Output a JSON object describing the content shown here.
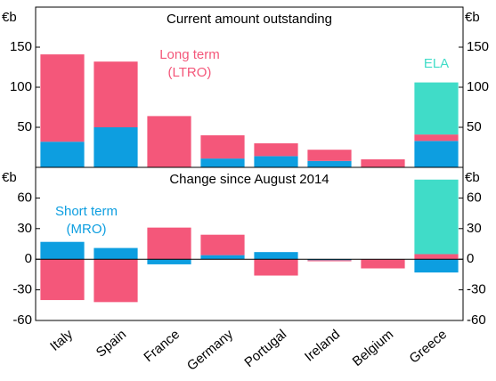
{
  "chart_data": [
    {
      "type": "bar",
      "subtitle": "Current amount outstanding",
      "unit": "€b",
      "ylim": [
        0,
        200
      ],
      "yticks": [
        50,
        100,
        150
      ],
      "series": [
        {
          "color": "#0d9ee0",
          "values": [
            32,
            50,
            0,
            11,
            14,
            8,
            0,
            33
          ]
        },
        {
          "name": "Long term",
          "abbr": "(LTRO)",
          "color": "#f4577a",
          "values": [
            109,
            82,
            64,
            29,
            16,
            14,
            10,
            8
          ]
        },
        {
          "name": "ELA",
          "color": "#40dcc8",
          "values": [
            0,
            0,
            0,
            0,
            0,
            0,
            0,
            65
          ]
        }
      ]
    },
    {
      "type": "bar",
      "subtitle": "Change since August 2014",
      "unit": "€b",
      "categories": [
        "Italy",
        "Spain",
        "France",
        "Germany",
        "Portugal",
        "Ireland",
        "Belgium",
        "Greece"
      ],
      "ylim": [
        -60,
        90
      ],
      "yticks": [
        -60,
        -30,
        0,
        30,
        60
      ],
      "series": [
        {
          "name": "Short term",
          "abbr": "(MRO)",
          "color": "#0d9ee0",
          "values": [
            17,
            11,
            -5,
            4,
            7,
            -1,
            0,
            -13
          ]
        },
        {
          "color": "#f4577a",
          "values": [
            -40,
            -42,
            31,
            20,
            -16,
            -1,
            -9,
            5
          ]
        },
        {
          "color": "#40dcc8",
          "values": [
            0,
            0,
            0,
            0,
            0,
            0,
            0,
            73
          ]
        }
      ]
    }
  ]
}
